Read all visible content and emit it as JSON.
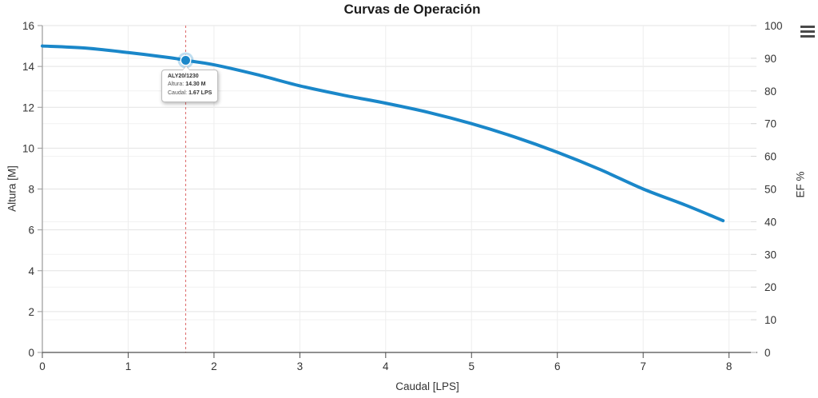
{
  "chart": {
    "title": "Curvas de Operación"
  },
  "menu": {
    "icon": "hamburger-menu"
  },
  "tooltip": {
    "series": "ALY20/1230",
    "altura_label": "Altura:",
    "altura_value": "14.30 M",
    "caudal_label": "Caudal:",
    "caudal_value": "1.67 LPS"
  },
  "chart_data": {
    "type": "line",
    "title": "Curvas de Operación",
    "xlabel": "Caudal [LPS]",
    "ylabel_left": "Altura [M]",
    "ylabel_right": "EF %",
    "xlim": [
      0,
      8.32
    ],
    "ylim_left": [
      0,
      16
    ],
    "ylim_right": [
      0,
      100
    ],
    "x_ticks": [
      0,
      1,
      2,
      3,
      4,
      5,
      6,
      7,
      8
    ],
    "y_left_ticks": [
      0,
      2,
      4,
      6,
      8,
      10,
      12,
      14,
      16
    ],
    "y_right_ticks": [
      0,
      10,
      20,
      30,
      40,
      50,
      60,
      70,
      80,
      90,
      100
    ],
    "grid": true,
    "legend": false,
    "series": [
      {
        "name": "ALY20/1230",
        "color": "#1a87c9",
        "axis": "left",
        "points": [
          [
            0,
            15.0
          ],
          [
            0.5,
            14.9
          ],
          [
            1,
            14.68
          ],
          [
            1.5,
            14.42
          ],
          [
            1.67,
            14.3
          ],
          [
            2,
            14.08
          ],
          [
            2.5,
            13.6
          ],
          [
            3,
            13.05
          ],
          [
            3.5,
            12.6
          ],
          [
            4,
            12.2
          ],
          [
            4.5,
            11.75
          ],
          [
            5,
            11.2
          ],
          [
            5.5,
            10.55
          ],
          [
            6,
            9.8
          ],
          [
            6.5,
            8.95
          ],
          [
            7,
            8.0
          ],
          [
            7.5,
            7.2
          ],
          [
            7.93,
            6.45
          ]
        ]
      }
    ],
    "selected_point": {
      "series": "ALY20/1230",
      "x": 1.67,
      "y": 14.3
    }
  },
  "colors": {
    "curve": "#1a87c9",
    "marker_halo": "rgba(26,135,201,0.28)",
    "crosshair": "#dd6666",
    "grid_major": "#e3e3e3",
    "grid_minor": "#f1f1f1",
    "axis_left": "#9a9a9a",
    "axis_bottom": "#4d4d4d",
    "tick_right": "#d6d6d6",
    "text": "#333333"
  }
}
